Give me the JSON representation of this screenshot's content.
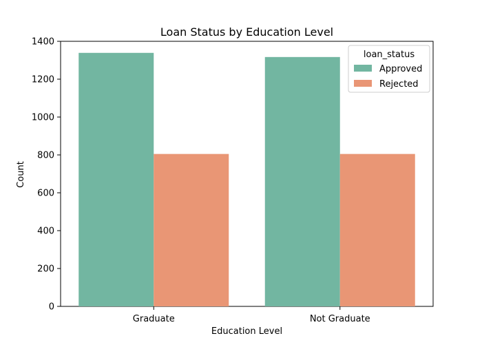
{
  "chart_data": {
    "type": "bar",
    "title": "Loan Status by Education Level",
    "xlabel": "Education Level",
    "ylabel": "Count",
    "categories": [
      "Graduate",
      "Not Graduate"
    ],
    "series": [
      {
        "name": "Approved",
        "values": [
          1339,
          1317
        ],
        "color": "#72b6a1"
      },
      {
        "name": "Rejected",
        "values": [
          805,
          805
        ],
        "color": "#e99675"
      }
    ],
    "ylim": [
      0,
      1400
    ],
    "yticks": [
      0,
      200,
      400,
      600,
      800,
      1000,
      1200,
      1400
    ],
    "legend": {
      "title": "loan_status",
      "placement": "top-right"
    },
    "grid": false
  }
}
